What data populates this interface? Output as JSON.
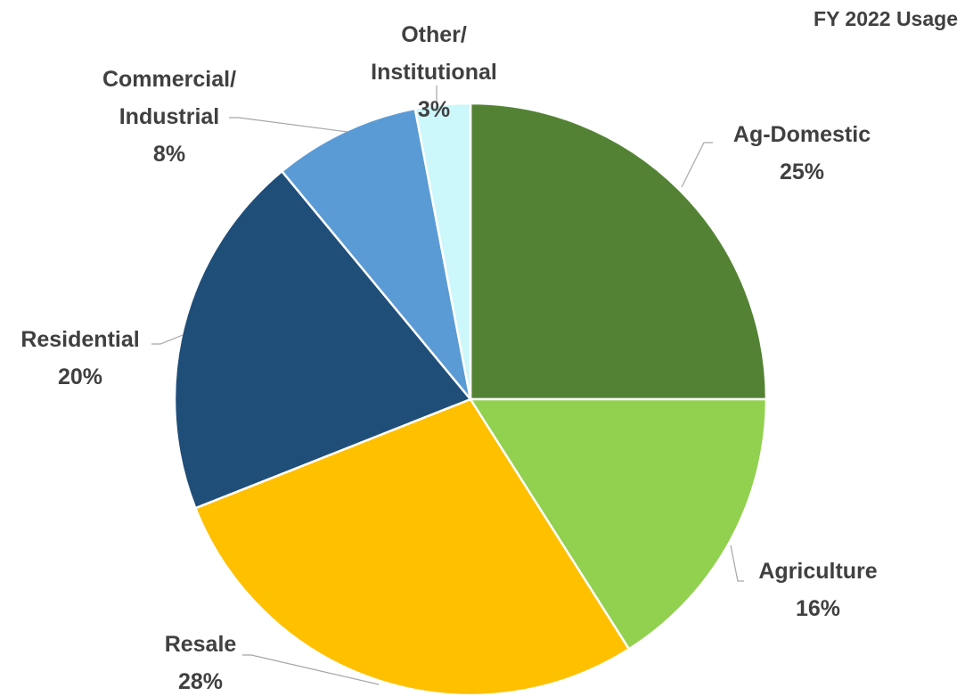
{
  "chart_data": {
    "type": "pie",
    "title": "FY 2022 Usage",
    "categories": [
      "Ag-Domestic",
      "Agriculture",
      "Resale",
      "Residential",
      "Commercial/\nIndustrial",
      "Other/\nInstitutional"
    ],
    "values": [
      25,
      16,
      28,
      20,
      8,
      3
    ],
    "value_labels": [
      "25%",
      "16%",
      "28%",
      "20%",
      "8%",
      "3%"
    ],
    "colors": [
      "#548235",
      "#92d050",
      "#ffc000",
      "#1f4e79",
      "#5b9bd5",
      "#ccf7fb"
    ]
  }
}
